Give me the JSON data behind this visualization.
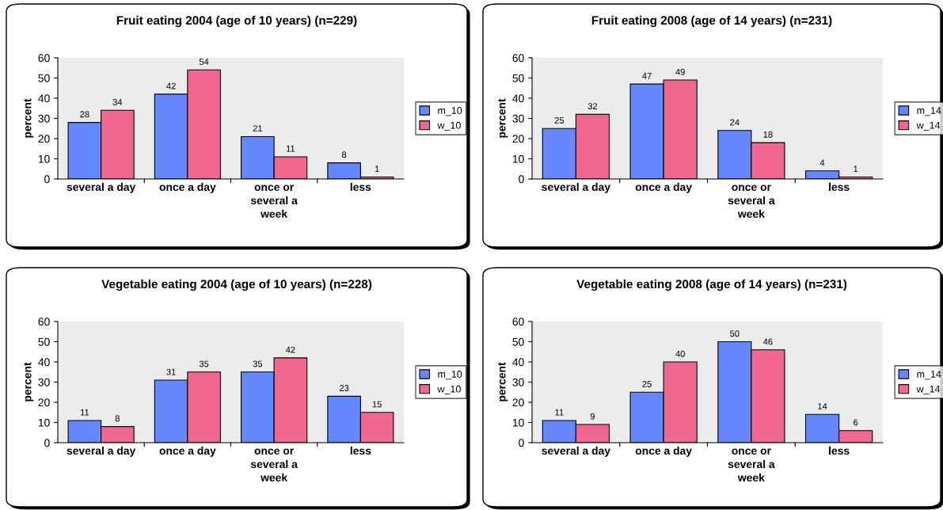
{
  "chart_data": [
    {
      "type": "bar",
      "title": "Fruit eating 2004 (age of 10 years) (n=229)",
      "ylabel": "percent",
      "categories": [
        "several a day",
        "once a day",
        "once or\nseveral a\nweek",
        "less"
      ],
      "ylim": [
        0,
        60
      ],
      "yticks": [
        0,
        10,
        20,
        30,
        40,
        50,
        60
      ],
      "data_labels": true,
      "legend": "right",
      "series": [
        {
          "name": "m_10",
          "color": "#6688ff",
          "values": [
            28,
            42,
            21,
            8
          ]
        },
        {
          "name": "w_10",
          "color": "#f06890",
          "values": [
            34,
            54,
            11,
            1
          ]
        }
      ]
    },
    {
      "type": "bar",
      "title": "Fruit eating 2008 (age of 14 years) (n=231)",
      "ylabel": "percent",
      "categories": [
        "several a day",
        "once a day",
        "once or\nseveral a\nweek",
        "less"
      ],
      "ylim": [
        0,
        60
      ],
      "yticks": [
        0,
        10,
        20,
        30,
        40,
        50,
        60
      ],
      "data_labels": true,
      "legend": "right",
      "series": [
        {
          "name": "m_14",
          "color": "#6688ff",
          "values": [
            25,
            47,
            24,
            4
          ]
        },
        {
          "name": "w_14",
          "color": "#f06890",
          "values": [
            32,
            49,
            18,
            1
          ]
        }
      ]
    },
    {
      "type": "bar",
      "title": "Vegetable eating 2004 (age of 10 years) (n=228)",
      "ylabel": "percent",
      "categories": [
        "several a day",
        "once a day",
        "once or\nseveral a\nweek",
        "less"
      ],
      "ylim": [
        0,
        60
      ],
      "yticks": [
        0,
        10,
        20,
        30,
        40,
        50,
        60
      ],
      "data_labels": true,
      "legend": "right",
      "series": [
        {
          "name": "m_10",
          "color": "#6688ff",
          "values": [
            11,
            31,
            35,
            23
          ]
        },
        {
          "name": "w_10",
          "color": "#f06890",
          "values": [
            8,
            35,
            42,
            15
          ]
        }
      ]
    },
    {
      "type": "bar",
      "title": "Vegetable eating 2008 (age of 14 years) (n=231)",
      "ylabel": "percent",
      "categories": [
        "several a day",
        "once a day",
        "once or\nseveral a\nweek",
        "less"
      ],
      "ylim": [
        0,
        60
      ],
      "yticks": [
        0,
        10,
        20,
        30,
        40,
        50,
        60
      ],
      "data_labels": true,
      "legend": "right",
      "series": [
        {
          "name": "m_14",
          "color": "#6688ff",
          "values": [
            11,
            25,
            50,
            14
          ]
        },
        {
          "name": "w_14",
          "color": "#f06890",
          "values": [
            9,
            40,
            46,
            6
          ]
        }
      ]
    }
  ]
}
